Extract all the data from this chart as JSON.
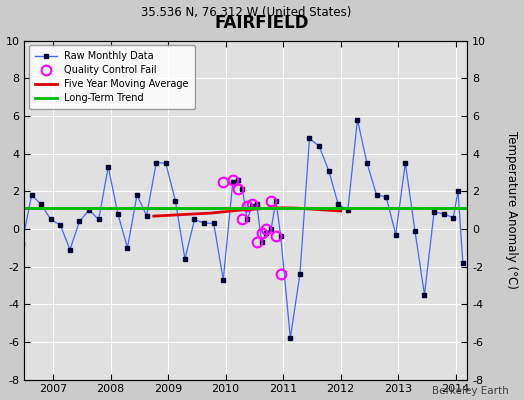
{
  "title": "FAIRFIELD",
  "subtitle": "35.536 N, 76.312 W (United States)",
  "watermark": "Berkeley Earth",
  "ylabel": "Temperature Anomaly (°C)",
  "ylim": [
    -8,
    10
  ],
  "yticks": [
    -8,
    -6,
    -4,
    -2,
    0,
    2,
    4,
    6,
    8,
    10
  ],
  "xlim_start": 2006.5,
  "xlim_end": 2014.2,
  "xtick_years": [
    2007,
    2008,
    2009,
    2010,
    2011,
    2012,
    2013,
    2014
  ],
  "background_color": "#cbcbcb",
  "plot_bg_color": "#e0e0e0",
  "grid_color": "#ffffff",
  "raw_line_color": "#4466ff",
  "raw_marker_color": "#000033",
  "moving_avg_color": "#dd0000",
  "trend_color": "#00bb00",
  "qc_fail_color": "#ff00ff",
  "raw_data": [
    [
      2006.458,
      -0.8
    ],
    [
      2006.625,
      1.8
    ],
    [
      2006.792,
      1.3
    ],
    [
      2006.958,
      0.5
    ],
    [
      2007.125,
      0.2
    ],
    [
      2007.292,
      -1.1
    ],
    [
      2007.458,
      0.4
    ],
    [
      2007.625,
      1.0
    ],
    [
      2007.792,
      0.5
    ],
    [
      2007.958,
      3.3
    ],
    [
      2008.125,
      0.8
    ],
    [
      2008.292,
      -1.0
    ],
    [
      2008.458,
      1.8
    ],
    [
      2008.625,
      0.7
    ],
    [
      2008.792,
      3.5
    ],
    [
      2008.958,
      3.5
    ],
    [
      2009.125,
      1.5
    ],
    [
      2009.292,
      -1.6
    ],
    [
      2009.458,
      0.5
    ],
    [
      2009.625,
      0.3
    ],
    [
      2009.792,
      0.3
    ],
    [
      2009.958,
      -2.7
    ],
    [
      2010.125,
      2.5
    ],
    [
      2010.208,
      2.6
    ],
    [
      2010.292,
      2.1
    ],
    [
      2010.375,
      0.5
    ],
    [
      2010.458,
      1.2
    ],
    [
      2010.542,
      1.3
    ],
    [
      2010.625,
      -0.7
    ],
    [
      2010.708,
      -0.2
    ],
    [
      2010.792,
      0.0
    ],
    [
      2010.875,
      1.5
    ],
    [
      2010.958,
      -0.4
    ],
    [
      2011.125,
      -5.8
    ],
    [
      2011.292,
      -2.4
    ],
    [
      2011.458,
      4.8
    ],
    [
      2011.625,
      4.4
    ],
    [
      2011.792,
      3.1
    ],
    [
      2011.958,
      1.3
    ],
    [
      2012.125,
      1.0
    ],
    [
      2012.292,
      5.8
    ],
    [
      2012.458,
      3.5
    ],
    [
      2012.625,
      1.8
    ],
    [
      2012.792,
      1.7
    ],
    [
      2012.958,
      -0.3
    ],
    [
      2013.125,
      3.5
    ],
    [
      2013.292,
      -0.1
    ],
    [
      2013.458,
      -3.5
    ],
    [
      2013.625,
      0.9
    ],
    [
      2013.792,
      0.8
    ],
    [
      2013.958,
      0.6
    ],
    [
      2014.042,
      2.0
    ],
    [
      2014.125,
      -1.8
    ]
  ],
  "qc_fail_points": [
    [
      2009.958,
      2.5
    ],
    [
      2010.125,
      2.6
    ],
    [
      2010.208,
      2.1
    ],
    [
      2010.292,
      0.5
    ],
    [
      2010.375,
      1.2
    ],
    [
      2010.458,
      1.3
    ],
    [
      2010.542,
      -0.7
    ],
    [
      2010.625,
      -0.2
    ],
    [
      2010.708,
      0.0
    ],
    [
      2010.792,
      1.5
    ],
    [
      2010.875,
      -0.4
    ],
    [
      2010.958,
      -2.4
    ]
  ],
  "moving_avg": [
    [
      2008.75,
      0.68
    ],
    [
      2009.0,
      0.72
    ],
    [
      2009.25,
      0.76
    ],
    [
      2009.5,
      0.8
    ],
    [
      2009.75,
      0.84
    ],
    [
      2010.0,
      0.92
    ],
    [
      2010.25,
      1.0
    ],
    [
      2010.5,
      1.05
    ],
    [
      2010.75,
      1.1
    ],
    [
      2011.0,
      1.12
    ],
    [
      2011.25,
      1.1
    ],
    [
      2011.5,
      1.05
    ],
    [
      2011.75,
      1.0
    ],
    [
      2012.0,
      0.95
    ]
  ],
  "trend_x": [
    2006.5,
    2014.2
  ],
  "trend_y": [
    1.1,
    1.1
  ]
}
